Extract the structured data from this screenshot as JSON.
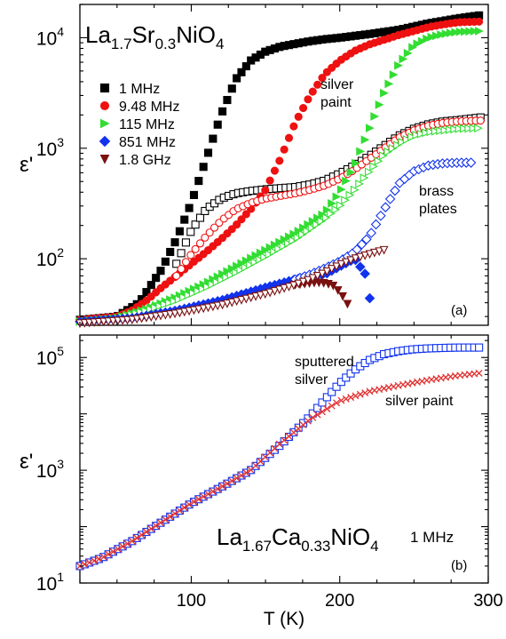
{
  "chart_data": [
    {
      "panel": "a",
      "type": "scatter",
      "title": "La1.7Sr0.3NiO4",
      "title_parts": {
        "el1": "La",
        "sub1": "1.7",
        "el2": "Sr",
        "sub2": "0.3",
        "el3": "NiO",
        "sub3": "4"
      },
      "panel_label": "(a)",
      "ylabel": "ε'",
      "yscale": "log",
      "xlim": [
        25,
        300
      ],
      "ylim": [
        25,
        20000
      ],
      "yticks": [
        {
          "value": 100,
          "label": "10",
          "exp": "2"
        },
        {
          "value": 1000,
          "label": "10",
          "exp": "3"
        },
        {
          "value": 10000,
          "label": "10",
          "exp": "4"
        }
      ],
      "legend_position": "upper-left",
      "annotations": {
        "silver_paint": [
          "silver",
          "paint"
        ],
        "brass_plates": [
          "brass",
          "plates"
        ]
      },
      "series": [
        {
          "name": "1 MHz",
          "color": "#000000",
          "marker": "square",
          "filled": true,
          "x": [
            25,
            50,
            65,
            80,
            90,
            100,
            110,
            120,
            130,
            140,
            150,
            160,
            170,
            180,
            190,
            200,
            220,
            240,
            260,
            280,
            295
          ],
          "y": [
            28,
            30,
            40,
            80,
            150,
            320,
            800,
            2000,
            4200,
            6200,
            7500,
            8300,
            8800,
            9300,
            9700,
            10000,
            10800,
            11800,
            13500,
            15000,
            16000
          ]
        },
        {
          "name": "1 MHz (brass plates)",
          "color": "#000000",
          "marker": "square",
          "filled": false,
          "x": [
            90,
            100,
            110,
            120,
            130,
            140,
            150,
            160,
            170,
            180,
            190,
            200,
            210,
            220,
            230,
            240,
            250,
            260,
            270,
            280,
            295
          ],
          "y": [
            90,
            180,
            280,
            350,
            390,
            410,
            425,
            435,
            445,
            470,
            510,
            590,
            700,
            850,
            1050,
            1300,
            1500,
            1650,
            1750,
            1800,
            1900
          ]
        },
        {
          "name": "9.48 MHz",
          "color": "#ee1111",
          "marker": "circle",
          "filled": true,
          "x": [
            25,
            50,
            60,
            70,
            80,
            90,
            100,
            110,
            120,
            130,
            140,
            150,
            160,
            170,
            180,
            190,
            200,
            210,
            220,
            230,
            240,
            250,
            260,
            270,
            280,
            295
          ],
          "y": [
            28,
            30,
            34,
            42,
            55,
            70,
            90,
            115,
            150,
            200,
            280,
            420,
            800,
            1700,
            3000,
            4700,
            6200,
            7600,
            8700,
            9600,
            10600,
            11500,
            12500,
            13200,
            13800,
            14000
          ]
        },
        {
          "name": "9.48 MHz (brass plates)",
          "color": "#ee1111",
          "marker": "circle",
          "filled": false,
          "x": [
            90,
            100,
            110,
            120,
            130,
            140,
            150,
            160,
            170,
            180,
            190,
            200,
            210,
            220,
            230,
            240,
            250,
            260,
            270,
            280,
            295
          ],
          "y": [
            70,
            110,
            160,
            220,
            280,
            320,
            350,
            370,
            390,
            420,
            460,
            530,
            640,
            800,
            1000,
            1250,
            1450,
            1600,
            1700,
            1750,
            1780
          ]
        },
        {
          "name": "115 MHz",
          "color": "#33dd33",
          "marker": "triangle-right",
          "filled": true,
          "x": [
            25,
            50,
            70,
            90,
            110,
            130,
            150,
            170,
            190,
            200,
            210,
            220,
            230,
            240,
            250,
            260,
            270,
            280,
            295
          ],
          "y": [
            27,
            29,
            35,
            45,
            60,
            85,
            120,
            170,
            260,
            400,
            700,
            1500,
            3200,
            5800,
            8500,
            10000,
            10800,
            11300,
            11500
          ]
        },
        {
          "name": "115 MHz (brass plates)",
          "color": "#33dd33",
          "marker": "triangle-right",
          "filled": false,
          "x": [
            50,
            70,
            90,
            110,
            130,
            150,
            170,
            190,
            200,
            210,
            220,
            230,
            240,
            250,
            260,
            270,
            280,
            295
          ],
          "y": [
            29,
            34,
            42,
            55,
            75,
            105,
            150,
            230,
            300,
            420,
            620,
            880,
            1100,
            1300,
            1400,
            1450,
            1500,
            1520
          ]
        },
        {
          "name": "851 MHz",
          "color": "#1133ee",
          "marker": "diamond",
          "filled": true,
          "x": [
            25,
            60,
            90,
            120,
            150,
            170,
            180,
            190,
            200,
            210,
            218,
            222
          ],
          "y": [
            27,
            29,
            34,
            42,
            55,
            65,
            70,
            72,
            85,
            100,
            70,
            30
          ]
        },
        {
          "name": "851 MHz (brass plates)",
          "color": "#1133ee",
          "marker": "diamond",
          "filled": false,
          "x": [
            170,
            180,
            190,
            200,
            210,
            220,
            230,
            240,
            250,
            260,
            270,
            280,
            290
          ],
          "y": [
            65,
            72,
            82,
            95,
            115,
            160,
            280,
            480,
            620,
            700,
            730,
            740,
            740
          ]
        },
        {
          "name": "1.8 GHz",
          "color": "#7a1010",
          "marker": "triangle-down",
          "filled": true,
          "x": [
            170,
            180,
            185,
            190,
            195,
            200,
            205,
            208
          ],
          "y": [
            58,
            60,
            61,
            60,
            58,
            50,
            40,
            27
          ]
        },
        {
          "name": "1.8 GHz (brass plates)",
          "color": "#7a1010",
          "marker": "triangle-down",
          "filled": false,
          "x": [
            25,
            60,
            90,
            120,
            150,
            170,
            180,
            190,
            200,
            210,
            220,
            230
          ],
          "y": [
            26,
            28,
            32,
            38,
            48,
            58,
            65,
            75,
            88,
            100,
            110,
            120
          ]
        }
      ]
    },
    {
      "panel": "b",
      "type": "scatter",
      "title": "La1.67Ca0.33NiO4",
      "title_parts": {
        "el1": "La",
        "sub1": "1.67",
        "el2": "Ca",
        "sub2": "0.33",
        "el3": "NiO",
        "sub3": "4"
      },
      "frequency_label": "1 MHz",
      "panel_label": "(b)",
      "xlabel": "T (K)",
      "ylabel": "ε'",
      "yscale": "log",
      "xlim": [
        25,
        300
      ],
      "ylim": [
        10,
        250000
      ],
      "xticks": [
        100,
        200,
        300
      ],
      "yticks": [
        {
          "value": 10,
          "label": "10",
          "exp": "1"
        },
        {
          "value": 1000,
          "label": "10",
          "exp": "3"
        },
        {
          "value": 100000,
          "label": "10",
          "exp": "5"
        }
      ],
      "annotations": {
        "sputtered_silver": [
          "sputtered",
          "silver"
        ],
        "silver_paint": "silver paint"
      },
      "series": [
        {
          "name": "sputtered silver",
          "color": "#1133ee",
          "marker": "square",
          "filled": false,
          "x": [
            25,
            40,
            60,
            80,
            100,
            120,
            140,
            160,
            170,
            180,
            190,
            200,
            210,
            220,
            230,
            240,
            250,
            260,
            270,
            280,
            295
          ],
          "y": [
            20,
            28,
            55,
            120,
            260,
            500,
            1000,
            2800,
            5000,
            9000,
            18000,
            35000,
            60000,
            90000,
            115000,
            130000,
            140000,
            145000,
            148000,
            150000,
            150000
          ]
        },
        {
          "name": "silver paint",
          "color": "#e03030",
          "marker": "x",
          "filled": false,
          "x": [
            25,
            40,
            60,
            80,
            100,
            120,
            140,
            160,
            180,
            200,
            220,
            240,
            260,
            280,
            295
          ],
          "y": [
            20,
            28,
            55,
            120,
            260,
            500,
            1000,
            3000,
            8000,
            17000,
            25000,
            32000,
            40000,
            48000,
            53000
          ]
        }
      ]
    }
  ]
}
